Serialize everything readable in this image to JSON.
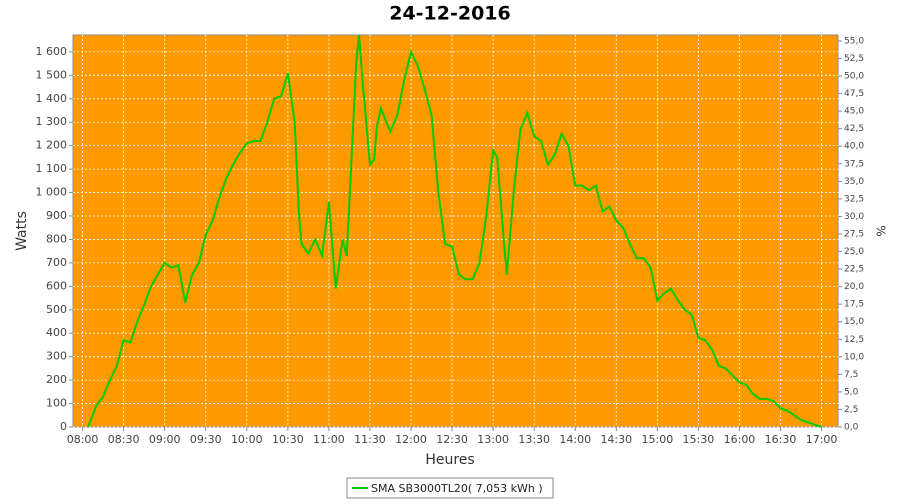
{
  "chart_data": {
    "type": "line",
    "title": "24-12-2016",
    "xlabel": "Heures",
    "ylabel": "Watts",
    "y2label": "%",
    "background": "#ff9900",
    "grid": true,
    "xlim": [
      473,
      1032
    ],
    "xticks": [
      {
        "value": 480,
        "label": "08:00"
      },
      {
        "value": 510,
        "label": "08:30"
      },
      {
        "value": 540,
        "label": "09:00"
      },
      {
        "value": 570,
        "label": "09:30"
      },
      {
        "value": 600,
        "label": "10:00"
      },
      {
        "value": 630,
        "label": "10:30"
      },
      {
        "value": 660,
        "label": "11:00"
      },
      {
        "value": 690,
        "label": "11:30"
      },
      {
        "value": 720,
        "label": "12:00"
      },
      {
        "value": 750,
        "label": "12:30"
      },
      {
        "value": 780,
        "label": "13:00"
      },
      {
        "value": 810,
        "label": "13:30"
      },
      {
        "value": 840,
        "label": "14:00"
      },
      {
        "value": 870,
        "label": "14:30"
      },
      {
        "value": 900,
        "label": "15:00"
      },
      {
        "value": 930,
        "label": "15:30"
      },
      {
        "value": 960,
        "label": "16:00"
      },
      {
        "value": 990,
        "label": "16:30"
      },
      {
        "value": 1020,
        "label": "17:00"
      }
    ],
    "ylim": [
      0,
      1672
    ],
    "yticks": [
      0,
      100,
      200,
      300,
      400,
      500,
      600,
      700,
      800,
      900,
      {
        "value": 1000,
        "label": "1 000"
      },
      {
        "value": 1100,
        "label": "1 100"
      },
      {
        "value": 1200,
        "label": "1 200"
      },
      {
        "value": 1300,
        "label": "1 300"
      },
      {
        "value": 1400,
        "label": "1 400"
      },
      {
        "value": 1500,
        "label": "1 500"
      },
      {
        "value": 1600,
        "label": "1 600"
      }
    ],
    "y2lim": [
      0,
      55.85
    ],
    "y2ticks": [
      {
        "value": 0,
        "label": "0,0"
      },
      {
        "value": 2.5,
        "label": "2,5"
      },
      {
        "value": 5,
        "label": "5,0"
      },
      {
        "value": 7.5,
        "label": "7,5"
      },
      {
        "value": 10,
        "label": "10,0"
      },
      {
        "value": 12.5,
        "label": "12,5"
      },
      {
        "value": 15,
        "label": "15,0"
      },
      {
        "value": 17.5,
        "label": "17,5"
      },
      {
        "value": 20,
        "label": "20,0"
      },
      {
        "value": 22.5,
        "label": "22,5"
      },
      {
        "value": 25,
        "label": "25,0"
      },
      {
        "value": 27.5,
        "label": "27,5"
      },
      {
        "value": 30,
        "label": "30,0"
      },
      {
        "value": 32.5,
        "label": "32,5"
      },
      {
        "value": 35,
        "label": "35,0"
      },
      {
        "value": 37.5,
        "label": "37,5"
      },
      {
        "value": 40,
        "label": "40,0"
      },
      {
        "value": 42.5,
        "label": "42,5"
      },
      {
        "value": 45,
        "label": "45,0"
      },
      {
        "value": 47.5,
        "label": "47,5"
      },
      {
        "value": 50,
        "label": "50,0"
      },
      {
        "value": 52.5,
        "label": "52,5"
      },
      {
        "value": 55,
        "label": "55,0"
      }
    ],
    "x": [
      484,
      490,
      495,
      500,
      505,
      510,
      515,
      520,
      525,
      530,
      535,
      540,
      545,
      550,
      555,
      560,
      565,
      570,
      575,
      580,
      585,
      590,
      595,
      600,
      605,
      610,
      615,
      620,
      625,
      630,
      635,
      638,
      640,
      645,
      650,
      655,
      660,
      665,
      670,
      673,
      677,
      680,
      682,
      685,
      690,
      693,
      695,
      698,
      702,
      705,
      710,
      715,
      720,
      725,
      730,
      735,
      740,
      745,
      750,
      755,
      760,
      765,
      770,
      775,
      780,
      783,
      788,
      790,
      795,
      800,
      805,
      810,
      815,
      820,
      825,
      830,
      835,
      840,
      845,
      850,
      855,
      860,
      865,
      870,
      875,
      880,
      885,
      890,
      895,
      900,
      905,
      910,
      915,
      920,
      925,
      930,
      935,
      940,
      945,
      950,
      955,
      960,
      965,
      970,
      975,
      980,
      985,
      990,
      995,
      1000,
      1005,
      1010,
      1015,
      1020
    ],
    "series": [
      {
        "name": "SMA SB3000TL20( 7,053 kWh )",
        "color": "#00cc00",
        "values": [
          0,
          90,
          130,
          200,
          260,
          370,
          360,
          450,
          520,
          600,
          650,
          700,
          680,
          690,
          530,
          650,
          700,
          820,
          880,
          980,
          1060,
          1120,
          1170,
          1210,
          1220,
          1220,
          1300,
          1400,
          1410,
          1510,
          1300,
          920,
          780,
          740,
          800,
          730,
          960,
          590,
          800,
          730,
          1200,
          1560,
          1670,
          1450,
          1120,
          1140,
          1280,
          1360,
          1300,
          1260,
          1330,
          1480,
          1600,
          1540,
          1440,
          1330,
          1000,
          780,
          770,
          650,
          630,
          630,
          700,
          900,
          1180,
          1150,
          780,
          650,
          1000,
          1270,
          1340,
          1240,
          1220,
          1120,
          1160,
          1250,
          1200,
          1030,
          1030,
          1010,
          1030,
          920,
          940,
          880,
          850,
          780,
          720,
          720,
          680,
          540,
          570,
          590,
          540,
          500,
          480,
          380,
          370,
          330,
          260,
          250,
          220,
          190,
          180,
          140,
          120,
          120,
          110,
          80,
          70,
          50,
          30,
          20,
          10,
          0
        ]
      }
    ]
  }
}
